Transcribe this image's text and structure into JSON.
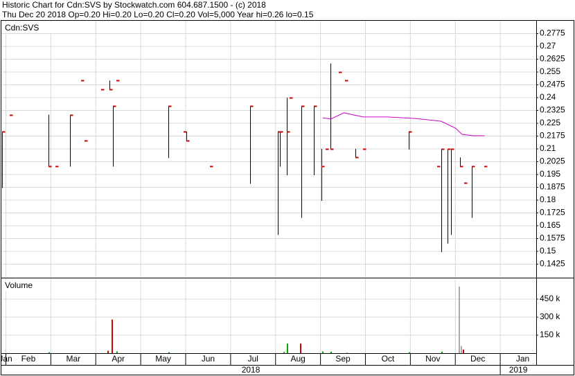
{
  "chart_data": {
    "type": "ohlc",
    "title": "Historic Chart for Cdn:SVS by Stockwatch.com 604.687.1500 - (c) 2018",
    "subtitle": "Thu Dec 20 2018  Op=0.20  Hi=0.20  Lo=0.20  Cl=0.20  Vol=5,000  Year hi=0.26  lo=0.15",
    "price_label": "Cdn:SVS",
    "volume_label": "Volume",
    "xlim": [
      1.9,
      13.8
    ],
    "xticks": [
      {
        "value": 1,
        "label": "Jan"
      },
      {
        "value": 2,
        "label": "Feb"
      },
      {
        "value": 3,
        "label": "Mar"
      },
      {
        "value": 4,
        "label": "Apr"
      },
      {
        "value": 5,
        "label": "May"
      },
      {
        "value": 6,
        "label": "Jun"
      },
      {
        "value": 7,
        "label": "Jul"
      },
      {
        "value": 8,
        "label": "Aug"
      },
      {
        "value": 9,
        "label": "Sep"
      },
      {
        "value": 10,
        "label": "Oct"
      },
      {
        "value": 11,
        "label": "Nov"
      },
      {
        "value": 12,
        "label": "Dec"
      },
      {
        "value": 13,
        "label": "Jan"
      }
    ],
    "years": [
      {
        "value": 1,
        "label": "2018"
      },
      {
        "value": 13,
        "label": "2019"
      }
    ],
    "ylim": [
      0.135,
      0.285
    ],
    "yticks": [
      0.1425,
      0.15,
      0.1575,
      0.165,
      0.1725,
      0.18,
      0.1875,
      0.195,
      0.2025,
      0.21,
      0.2175,
      0.225,
      0.2325,
      0.24,
      0.2475,
      0.255,
      0.2625,
      0.27,
      0.2775
    ],
    "grid": true,
    "range_color": "#000000",
    "close_color": "#cc0000",
    "ohlc": {
      "x": [
        1.92,
        2.09,
        2.95,
        3.11,
        3.42,
        3.68,
        3.75,
        4.12,
        4.31,
        4.38,
        4.46,
        5.62,
        5.95,
        6.02,
        6.54,
        7.43,
        8.05,
        8.09,
        8.25,
        8.32,
        8.57,
        8.85,
        9.02,
        9.11,
        9.22,
        9.4,
        9.55,
        9.77,
        9.95,
        10.97,
        11.6,
        11.69,
        11.82,
        11.91,
        12.11,
        12.2,
        12.37,
        12.65
      ],
      "high": [
        0.22,
        0.23,
        0.23,
        0.2,
        0.23,
        0.25,
        0.215,
        0.245,
        0.25,
        0.235,
        0.25,
        0.235,
        0.22,
        0.22,
        0.2,
        0.235,
        0.22,
        0.22,
        0.24,
        0.24,
        0.235,
        0.235,
        0.21,
        0.21,
        0.26,
        0.255,
        0.25,
        0.21,
        0.21,
        0.22,
        0.2,
        0.21,
        0.21,
        0.21,
        0.205,
        0.19,
        0.2,
        0.2
      ],
      "low": [
        0.1875,
        0.23,
        0.2,
        0.2,
        0.2,
        0.25,
        0.215,
        0.245,
        0.245,
        0.2,
        0.25,
        0.205,
        0.22,
        0.215,
        0.2,
        0.19,
        0.16,
        0.2,
        0.195,
        0.24,
        0.17,
        0.195,
        0.18,
        0.21,
        0.21,
        0.255,
        0.25,
        0.205,
        0.21,
        0.21,
        0.2,
        0.15,
        0.155,
        0.16,
        0.2,
        0.19,
        0.17,
        0.2
      ],
      "close": [
        0.22,
        0.23,
        0.2,
        0.2,
        0.23,
        0.25,
        0.215,
        0.245,
        0.245,
        0.235,
        0.25,
        0.235,
        0.22,
        0.215,
        0.2,
        0.235,
        0.22,
        0.22,
        0.22,
        0.24,
        0.235,
        0.235,
        0.2,
        0.21,
        0.21,
        0.255,
        0.25,
        0.205,
        0.21,
        0.22,
        0.2,
        0.21,
        0.21,
        0.21,
        0.2,
        0.19,
        0.2,
        0.2
      ]
    },
    "moving_average": {
      "color": "#cc00cc",
      "x": [
        9.05,
        9.23,
        9.52,
        9.95,
        10.49,
        11.11,
        11.68,
        12.0,
        12.15,
        12.4,
        12.65
      ],
      "values": [
        0.2282,
        0.2275,
        0.2311,
        0.2287,
        0.2287,
        0.2278,
        0.2262,
        0.2222,
        0.2185,
        0.2177,
        0.2177
      ]
    },
    "volume": {
      "ylim": [
        0,
        600000
      ],
      "yticks": [
        {
          "value": 150000,
          "label": "150 k"
        },
        {
          "value": 300000,
          "label": "300 k"
        },
        {
          "value": 450000,
          "label": "450 k"
        }
      ],
      "x": [
        2.95,
        4.26,
        4.35,
        4.46,
        5.62,
        8.17,
        8.25,
        8.55,
        9.03,
        9.22,
        9.57,
        10.97,
        11.69,
        12.08,
        12.12,
        12.17
      ],
      "values": [
        8000,
        20000,
        280000,
        15000,
        8000,
        10000,
        80000,
        80000,
        15000,
        12000,
        5000,
        8000,
        12000,
        555000,
        60000,
        30000
      ],
      "colors": [
        "#00aa00",
        "#cc0000",
        "#cc0000",
        "#00aa00",
        "#00aa00",
        "#00aa00",
        "#00aa00",
        "#cc0000",
        "#00aa00",
        "#00aa00",
        "#999999",
        "#00aa00",
        "#00aa00",
        "#aaaaaa",
        "#aaaaaa",
        "#cc0000"
      ]
    }
  }
}
